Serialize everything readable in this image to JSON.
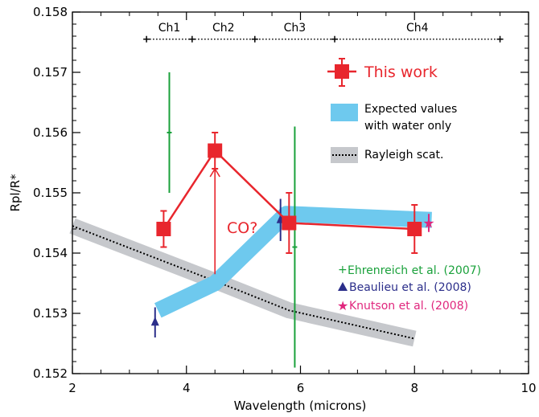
{
  "chart_data": {
    "type": "scatter",
    "title": "",
    "xlabel": "Wavelength (microns)",
    "ylabel": "Rpl/R*",
    "xlim": [
      2,
      10
    ],
    "ylim": [
      0.152,
      0.158
    ],
    "x_ticks": [
      2,
      4,
      6,
      8,
      10
    ],
    "y_ticks": [
      0.152,
      0.153,
      0.154,
      0.155,
      0.156,
      0.157,
      0.158
    ],
    "x_tick_labels": [
      "2",
      "4",
      "6",
      "8",
      "10"
    ],
    "y_tick_labels": [
      "0.152",
      "0.153",
      "0.154",
      "0.155",
      "0.156",
      "0.157",
      "0.158"
    ],
    "grid": false,
    "legend_placement": "right",
    "channels": {
      "y": 0.15755,
      "bands": [
        {
          "label": "Ch1",
          "x_start": 3.3,
          "x_end": 4.1
        },
        {
          "label": "Ch2",
          "x_start": 4.1,
          "x_end": 5.2
        },
        {
          "label": "Ch3",
          "x_start": 5.2,
          "x_end": 6.6
        },
        {
          "label": "Ch4",
          "x_start": 6.6,
          "x_end": 9.5
        }
      ]
    },
    "this_work": {
      "name": "This work",
      "color": "#e8262d",
      "points": [
        {
          "x": 3.6,
          "y": 0.1544,
          "err": 0.0003
        },
        {
          "x": 4.5,
          "y": 0.1557,
          "err": 0.0003
        },
        {
          "x": 5.8,
          "y": 0.1545,
          "err": 0.0005
        },
        {
          "x": 8.0,
          "y": 0.1544,
          "err": 0.0004
        }
      ]
    },
    "water_only": {
      "name": "Expected values with water only",
      "color": "#6ec9ee",
      "points": [
        {
          "x": 3.5,
          "y": 0.15305
        },
        {
          "x": 4.5,
          "y": 0.1535
        },
        {
          "x": 5.75,
          "y": 0.15465
        },
        {
          "x": 8.3,
          "y": 0.15455
        }
      ]
    },
    "rayleigh": {
      "name": "Rayleigh scat.",
      "band_color": "#c6c8cc",
      "points": [
        {
          "x": 2.0,
          "y": 0.15445
        },
        {
          "x": 4.6,
          "y": 0.1535
        },
        {
          "x": 5.8,
          "y": 0.15305
        },
        {
          "x": 8.0,
          "y": 0.15258
        }
      ]
    },
    "co_annotation": {
      "text": "CO?",
      "x": 4.5,
      "y_from": 0.15365,
      "y_to": 0.1554
    },
    "ehrenreich": {
      "name": "Ehrenreich et al. (2007)",
      "color": "#1aa13b",
      "points": [
        {
          "x": 3.7,
          "y": 0.156,
          "err": 0.001
        },
        {
          "x": 5.9,
          "y": 0.1541,
          "err": 0.002
        }
      ]
    },
    "beaulieu": {
      "name": "Beaulieu et al. (2008)",
      "color": "#2b2e8a",
      "points": [
        {
          "x": 3.45,
          "y": 0.15285,
          "err": 0.00025
        },
        {
          "x": 5.65,
          "y": 0.15455,
          "err": 0.00035
        }
      ]
    },
    "knutson": {
      "name": "Knutson  et al. (2008)",
      "color": "#e0267d",
      "points": [
        {
          "x": 8.25,
          "y": 0.1545,
          "err": 0.00015
        }
      ]
    }
  }
}
